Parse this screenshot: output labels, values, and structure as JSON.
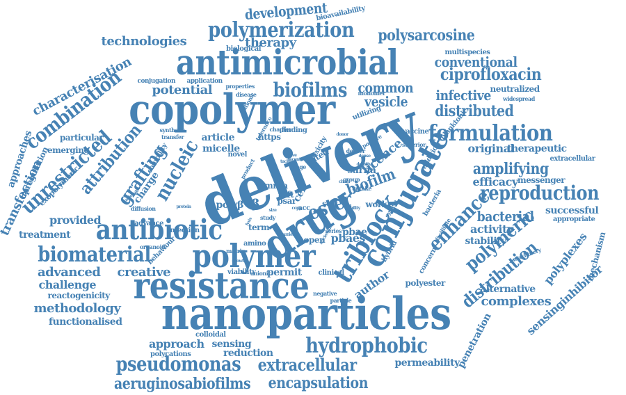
{
  "color": "#4682b4",
  "words": [
    "nanoparticles",
    "delivery",
    "copolymer",
    "antimicrobial",
    "resistance",
    "drug",
    "polymer",
    "antibiotic",
    "conjugate",
    "triblock",
    "hydrophobic",
    "polymerization",
    "biomaterial",
    "formulation",
    "reproduction",
    "combination",
    "biofilms",
    "nucleic",
    "unrestricted",
    "grafting",
    "ester",
    "enhance",
    "polymeric",
    "distribution",
    "pseudomonas",
    "aeruginosabiofilms",
    "encapsulation",
    "extracellular",
    "ciprofloxacin",
    "distributed",
    "amplifying",
    "development",
    "polysarcosine",
    "technologies",
    "therapy",
    "conventional",
    "infective",
    "common",
    "vesicle",
    "potential",
    "attribution",
    "characterisation",
    "particular",
    "emerging",
    "approaches",
    "transfection",
    "upregulation",
    "exopolymeric",
    "provided",
    "treatment",
    "advanced",
    "creative",
    "challenge",
    "reactogenicity",
    "methodology",
    "functionalised",
    "approach",
    "sensing",
    "reduction",
    "polycations",
    "colloidal",
    "permeability",
    "penetration",
    "complexes",
    "alternative",
    "sensinginhibitor",
    "polyplexes",
    "mechanism",
    "successful",
    "appropriate",
    "stability",
    "activity",
    "bacterial",
    "efficacy",
    "messenger",
    "therapeutic",
    "extracellular",
    "original",
    "planktonic",
    "neutralized",
    "widespread",
    "multispecies",
    "bioavailability",
    "biological",
    "conjugation",
    "application",
    "properties",
    "cationic",
    "article",
    "micelle",
    "https",
    "synthetic",
    "transfer",
    "charge",
    "solubility",
    "licence",
    "biofilm",
    "cell",
    "sarna",
    "work",
    "mrna",
    "raft",
    "psar",
    "polyβ",
    "β",
    "pbae",
    "pbaes",
    "term",
    "amino",
    "open",
    "acc",
    "self",
    "cited",
    "author",
    "polyester",
    "permit",
    "clinical",
    "viability",
    "anionic",
    "behaviour",
    "infection",
    "advance",
    "diffusion",
    "organoid",
    "concern",
    "hybrid",
    "facilitate",
    "bacteria",
    "vaccine",
    "superior",
    "addition",
    "toxicity",
    "uptake",
    "group",
    "finding",
    "chapter",
    "tolerance",
    "disease",
    "monomer",
    "utilizing",
    "machinery",
    "negative",
    "particle",
    "series",
    "protein",
    "molecule",
    "study",
    "matrix",
    "deliver",
    "dense",
    "product",
    "novel",
    "range",
    "recent",
    "active",
    "chain",
    "ability",
    "system",
    "positive",
    "density",
    "tackle",
    "nucleotide",
    "donor",
    "barrier",
    "copy",
    "size",
    "lysis",
    "growth"
  ]
}
